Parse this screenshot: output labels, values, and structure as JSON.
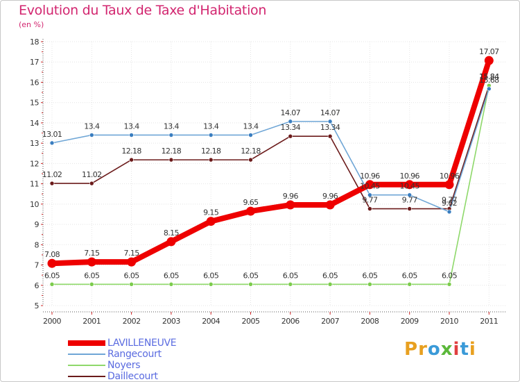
{
  "title": "Evolution du Taux de Taxe d'Habitation",
  "subtitle": "(en %)",
  "logo": {
    "text": "Proxiti",
    "colors": [
      "#e8a020",
      "#e8a020",
      "#3a9ad8",
      "#5bb83a",
      "#e04040",
      "#3a9ad8",
      "#e8a020"
    ]
  },
  "chart_data": {
    "type": "line",
    "title": "Evolution du Taux de Taxe d'Habitation",
    "ylabel": "(en %)",
    "xlabel": "",
    "ylim": [
      5,
      18
    ],
    "y_ticks": [
      "5",
      "6",
      "7",
      "8",
      "9",
      "10",
      "11",
      "12",
      "13",
      "14",
      "15",
      "16",
      "17",
      "18"
    ],
    "categories": [
      "2000",
      "2001",
      "2002",
      "2003",
      "2004",
      "2005",
      "2006",
      "2007",
      "2008",
      "2009",
      "2010",
      "2011"
    ],
    "series": [
      {
        "name": "Daillecourt",
        "color": "#6b1a1a",
        "values": [
          11.02,
          11.02,
          12.18,
          12.18,
          12.18,
          12.18,
          13.34,
          13.34,
          9.77,
          9.77,
          9.77,
          15.84
        ],
        "labels": [
          "11.02",
          "11.02",
          "12.18",
          "12.18",
          "12.18",
          "12.18",
          "13.34",
          "13.34",
          "9.77",
          "9.77",
          "9.77",
          "15.84"
        ]
      },
      {
        "name": "Noyers",
        "color": "#8ed86a",
        "values": [
          6.05,
          6.05,
          6.05,
          6.05,
          6.05,
          6.05,
          6.05,
          6.05,
          6.05,
          6.05,
          6.05,
          15.84
        ],
        "labels": [
          "6.05",
          "6.05",
          "6.05",
          "6.05",
          "6.05",
          "6.05",
          "6.05",
          "6.05",
          "6.05",
          "6.05",
          "6.05",
          "15.84"
        ]
      },
      {
        "name": "Rangecourt",
        "color": "#6fa6d6",
        "values": [
          13.01,
          13.4,
          13.4,
          13.4,
          13.4,
          13.4,
          14.07,
          14.07,
          10.45,
          10.45,
          9.62,
          15.68
        ],
        "labels": [
          "13.01",
          "13.4",
          "13.4",
          "13.4",
          "13.4",
          "13.4",
          "14.07",
          "14.07",
          "10.45",
          "10.45",
          "9.62",
          "15.68"
        ]
      },
      {
        "name": "LAVILLENEUVE",
        "color": "#ee0000",
        "values": [
          7.08,
          7.15,
          7.15,
          8.15,
          9.15,
          9.65,
          9.96,
          9.96,
          10.96,
          10.96,
          10.96,
          17.07
        ],
        "labels": [
          "7.08",
          "7.15",
          "7.15",
          "8.15",
          "9.15",
          "9.65",
          "9.96",
          "9.96",
          "10.96",
          "10.96",
          "10.96",
          "17.07"
        ]
      }
    ],
    "legend": [
      "LAVILLENEUVE",
      "Rangecourt",
      "Noyers",
      "Daillecourt"
    ],
    "legend_position": "bottom-left"
  }
}
